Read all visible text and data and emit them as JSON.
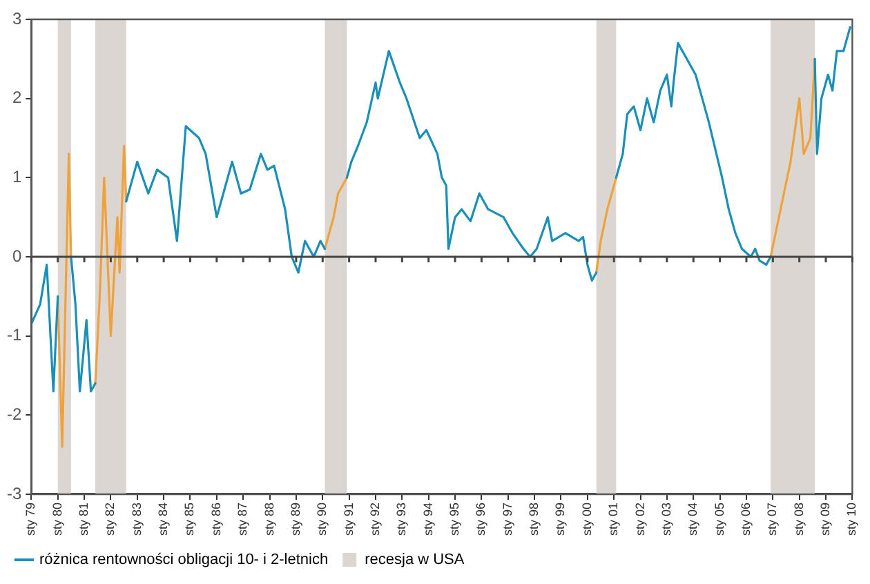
{
  "chart_data": {
    "type": "line",
    "x": [
      "1979-01",
      "1979-05",
      "1979-08",
      "1979-11",
      "1980-01",
      "1980-03",
      "1980-06",
      "1980-07",
      "1980-09",
      "1980-11",
      "1981-02",
      "1981-04",
      "1981-06",
      "1981-08",
      "1981-10",
      "1982-01",
      "1982-04",
      "1982-05",
      "1982-07",
      "1982-08",
      "1983-01",
      "1983-06",
      "1983-10",
      "1984-03",
      "1984-07",
      "1984-11",
      "1985-05",
      "1985-08",
      "1986-01",
      "1986-03",
      "1986-08",
      "1986-12",
      "1987-04",
      "1987-09",
      "1987-12",
      "1988-03",
      "1988-08",
      "1988-11",
      "1989-02",
      "1989-05",
      "1989-09",
      "1989-12",
      "1990-02",
      "1990-06",
      "1990-08",
      "1990-12",
      "1991-02",
      "1991-05",
      "1991-09",
      "1992-01",
      "1992-02",
      "1992-07",
      "1992-12",
      "1993-03",
      "1993-09",
      "1993-12",
      "1994-05",
      "1994-07",
      "1994-09",
      "1994-10",
      "1995-01",
      "1995-04",
      "1995-08",
      "1995-12",
      "1996-04",
      "1996-11",
      "1997-03",
      "1997-08",
      "1997-11",
      "1998-02",
      "1998-07",
      "1998-09",
      "1999-03",
      "1999-09",
      "1999-11",
      "2000-01",
      "2000-03",
      "2000-05",
      "2000-07",
      "2000-10",
      "2001-02",
      "2001-05",
      "2001-07",
      "2001-10",
      "2002-01",
      "2002-04",
      "2002-07",
      "2002-10",
      "2003-01",
      "2003-03",
      "2003-04",
      "2003-06",
      "2003-10",
      "2004-02",
      "2004-08",
      "2005-02",
      "2005-05",
      "2005-08",
      "2005-11",
      "2006-03",
      "2006-05",
      "2006-07",
      "2006-10",
      "2006-12",
      "2007-03",
      "2007-06",
      "2007-09",
      "2008-01",
      "2008-03",
      "2008-06",
      "2008-08",
      "2008-09",
      "2008-11",
      "2009-02",
      "2009-04",
      "2009-06",
      "2009-09",
      "2009-12"
    ],
    "series": [
      {
        "name": "różnica rentowności obligacji 10- i 2-letnich",
        "color": "#1a8fb8",
        "values": [
          -0.85,
          -0.6,
          -0.1,
          -1.7,
          -0.5,
          null,
          null,
          0.0,
          -0.6,
          -1.7,
          -0.8,
          -1.7,
          -1.6,
          null,
          null,
          null,
          null,
          null,
          null,
          0.7,
          1.2,
          0.8,
          1.1,
          1.0,
          0.2,
          1.65,
          1.5,
          1.3,
          0.5,
          0.7,
          1.2,
          0.8,
          0.85,
          1.3,
          1.1,
          1.15,
          0.6,
          0.0,
          -0.2,
          0.2,
          0.0,
          0.2,
          0.1,
          null,
          null,
          1.0,
          1.2,
          1.4,
          1.7,
          2.2,
          2.0,
          2.6,
          2.2,
          2.0,
          1.5,
          1.6,
          1.3,
          1.0,
          0.9,
          0.1,
          0.5,
          0.6,
          0.45,
          0.8,
          0.6,
          0.5,
          0.3,
          0.1,
          0.0,
          0.1,
          0.5,
          0.2,
          0.3,
          0.2,
          0.25,
          -0.1,
          -0.3,
          -0.2,
          null,
          null,
          1.0,
          1.3,
          1.8,
          1.9,
          1.6,
          2.0,
          1.7,
          2.1,
          2.3,
          1.9,
          2.2,
          2.7,
          2.5,
          2.3,
          1.7,
          1.0,
          0.6,
          0.3,
          0.1,
          0.0,
          0.1,
          -0.05,
          -0.1,
          0.0,
          null,
          null,
          null,
          null,
          null,
          null,
          2.5,
          1.3,
          2.0,
          2.3,
          2.1,
          2.6,
          2.6,
          2.9
        ]
      },
      {
        "color": "#f0a23a",
        "values": [
          null,
          null,
          null,
          null,
          -0.5,
          -2.4,
          1.3,
          0.0,
          null,
          null,
          null,
          null,
          -1.6,
          -0.5,
          1.0,
          -1.0,
          0.5,
          -0.2,
          1.4,
          0.7,
          null,
          null,
          null,
          null,
          null,
          null,
          null,
          null,
          null,
          null,
          null,
          null,
          null,
          null,
          null,
          null,
          null,
          null,
          null,
          null,
          null,
          null,
          0.1,
          0.5,
          0.8,
          1.0,
          null,
          null,
          null,
          null,
          null,
          null,
          null,
          null,
          null,
          null,
          null,
          null,
          null,
          null,
          null,
          null,
          null,
          null,
          null,
          null,
          null,
          null,
          null,
          null,
          null,
          null,
          null,
          null,
          null,
          null,
          null,
          -0.2,
          0.2,
          0.6,
          1.0,
          null,
          null,
          null,
          null,
          null,
          null,
          null,
          null,
          null,
          null,
          null,
          null,
          null,
          null,
          null,
          null,
          null,
          null,
          null,
          null,
          null,
          null,
          0.0,
          0.4,
          0.8,
          1.2,
          2.0,
          1.3,
          1.5,
          2.5,
          null,
          null,
          null,
          null,
          null,
          null,
          null
        ]
      }
    ],
    "bands": [
      {
        "axis": "x",
        "from": "1980-01",
        "to": "1980-07",
        "label": "recesja w USA",
        "color": "#dcd6d2"
      },
      {
        "axis": "x",
        "from": "1981-06",
        "to": "1982-08",
        "color": "#dcd6d2"
      },
      {
        "axis": "x",
        "from": "1990-02",
        "to": "1990-12",
        "color": "#dcd6d2"
      },
      {
        "axis": "x",
        "from": "2000-05",
        "to": "2001-02",
        "color": "#dcd6d2"
      },
      {
        "axis": "x",
        "from": "2006-12",
        "to": "2008-08",
        "color": "#dcd6d2"
      }
    ],
    "xlim": [
      "1979-01",
      "2010-01"
    ],
    "xticks": [
      {
        "value": "1979-01",
        "label": "sty 79"
      },
      {
        "value": "1980-01",
        "label": "sty 80"
      },
      {
        "value": "1981-01",
        "label": "sty 81"
      },
      {
        "value": "1982-01",
        "label": "sty 82"
      },
      {
        "value": "1983-01",
        "label": "sty 83"
      },
      {
        "value": "1984-01",
        "label": "sty 84"
      },
      {
        "value": "1985-01",
        "label": "sty 85"
      },
      {
        "value": "1986-01",
        "label": "sty 86"
      },
      {
        "value": "1987-01",
        "label": "sty 87"
      },
      {
        "value": "1988-01",
        "label": "sty 88"
      },
      {
        "value": "1989-01",
        "label": "sty 89"
      },
      {
        "value": "1990-01",
        "label": "sty 90"
      },
      {
        "value": "1991-01",
        "label": "sty 91"
      },
      {
        "value": "1992-01",
        "label": "sty 92"
      },
      {
        "value": "1993-01",
        "label": "sty 93"
      },
      {
        "value": "1994-01",
        "label": "sty 94"
      },
      {
        "value": "1995-01",
        "label": "sty 95"
      },
      {
        "value": "1996-01",
        "label": "sty 96"
      },
      {
        "value": "1997-01",
        "label": "sty 97"
      },
      {
        "value": "1998-01",
        "label": "sty 98"
      },
      {
        "value": "1999-01",
        "label": "sty 99"
      },
      {
        "value": "2000-01",
        "label": "sty 00"
      },
      {
        "value": "2001-01",
        "label": "sty 01"
      },
      {
        "value": "2002-01",
        "label": "sty 02"
      },
      {
        "value": "2003-01",
        "label": "sty 03"
      },
      {
        "value": "2004-01",
        "label": "sty 04"
      },
      {
        "value": "2005-01",
        "label": "sty 05"
      },
      {
        "value": "2006-01",
        "label": "sty 06"
      },
      {
        "value": "2007-01",
        "label": "sty 07"
      },
      {
        "value": "2008-01",
        "label": "sty 08"
      },
      {
        "value": "2009-01",
        "label": "sty 09"
      },
      {
        "value": "2010-01",
        "label": "sty 10"
      }
    ],
    "ref_lines": [
      {
        "axis": "y",
        "value": 0,
        "color": "#444444"
      }
    ],
    "ylim": [
      -3,
      3
    ],
    "yticks": [
      -3,
      -2,
      -1,
      0,
      1,
      2,
      3
    ],
    "grid": false,
    "legend": "bottom",
    "line_style": "solid"
  }
}
